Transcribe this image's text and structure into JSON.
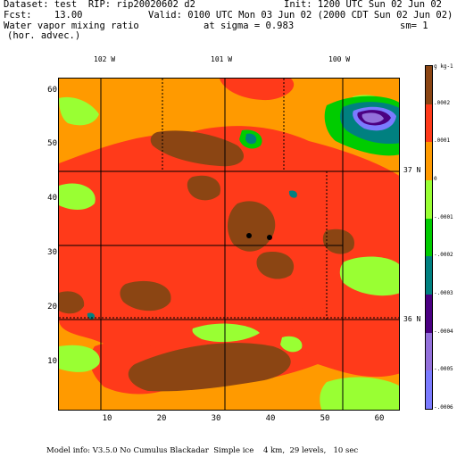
{
  "header": {
    "dataset": "Dataset: test  RIP: rip20020602 d2",
    "init": "Init: 1200 UTC Sun 02 Jun 02",
    "fcst": "Fcst:    13.00",
    "valid": "Valid: 0100 UTC Mon 03 Jun 02 (2000 CDT Sun 02 Jun 02)",
    "field": "Water vapor mixing ratio",
    "sigma": "at sigma = 0.983",
    "sm": "sm= 1",
    "advec": "(hor. advec.)"
  },
  "longitude_labels": [
    "102 W",
    "101 W",
    "100 W"
  ],
  "latitude_labels": [
    "37 N",
    "36 N"
  ],
  "y_axis_ticks": [
    "60",
    "50",
    "40",
    "30",
    "20",
    "10"
  ],
  "x_axis_ticks": [
    "10",
    "20",
    "30",
    "40",
    "50",
    "60"
  ],
  "colorbar": {
    "unit": "g kg-1",
    "labels": [
      ".0002",
      ".0001",
      "0",
      "-.0001",
      "-.0002",
      "-.0003",
      "-.0004",
      "-.0005",
      "-.0006"
    ],
    "colors": [
      "#8b4513",
      "#ff3a1a",
      "#ff9a00",
      "#99ff33",
      "#00cc00",
      "#008080",
      "#4b0082",
      "#9370db",
      "#7b7bff"
    ]
  },
  "footer": "Model info: V3.5.0 No Cumulus Blackadar  Simple ice    4 km,  29 levels,   10 sec"
}
